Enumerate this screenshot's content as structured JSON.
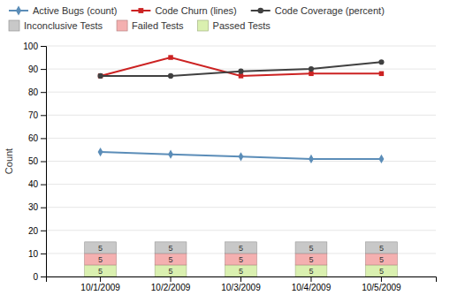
{
  "chart_data": {
    "type": "bar",
    "stacked": true,
    "categories": [
      "10/1/2009",
      "10/2/2009",
      "10/3/2009",
      "10/4/2009",
      "10/5/2009"
    ],
    "ylabel": "Count",
    "ylim": [
      0,
      100
    ],
    "yticks": [
      0,
      10,
      20,
      30,
      40,
      50,
      60,
      70,
      80,
      90,
      100
    ],
    "grid": true,
    "legend": "upper left",
    "data_labels": true,
    "series": [
      {
        "name": "Active Bugs (count)",
        "type": "line",
        "marker": "diamond",
        "color": "#5b8db8",
        "values": [
          54,
          53,
          52,
          51,
          51
        ]
      },
      {
        "name": "Code Churn (lines)",
        "type": "line",
        "marker": "square",
        "color": "#cc2222",
        "values": [
          87,
          95,
          87,
          88,
          88
        ]
      },
      {
        "name": "Code Coverage (percent)",
        "type": "line",
        "marker": "circle",
        "color": "#404040",
        "values": [
          87,
          87,
          89,
          90,
          93
        ]
      },
      {
        "name": "Inconclusive Tests",
        "type": "bar",
        "color": "#c8c8c8",
        "values": [
          5,
          5,
          5,
          5,
          5
        ]
      },
      {
        "name": "Failed Tests",
        "type": "bar",
        "color": "#f4b0b0",
        "values": [
          5,
          5,
          5,
          5,
          5
        ]
      },
      {
        "name": "Passed Tests",
        "type": "bar",
        "color": "#daf0b0",
        "values": [
          5,
          5,
          5,
          5,
          5
        ]
      }
    ]
  }
}
